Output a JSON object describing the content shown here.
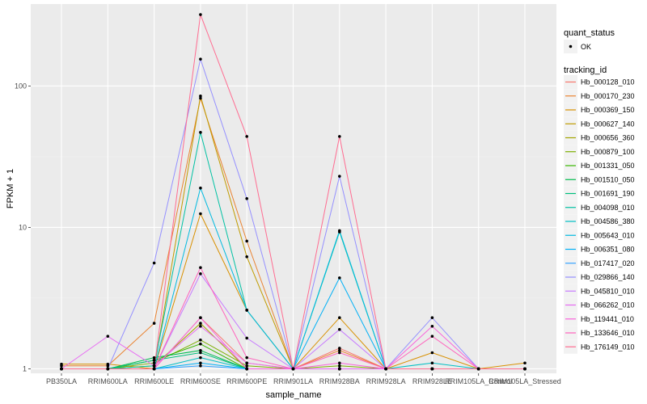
{
  "chart_data": {
    "type": "line",
    "title": "",
    "xlabel": "sample_name",
    "ylabel": "FPKM + 1",
    "y_scale": "log10",
    "ylim": [
      0.93,
      380
    ],
    "y_ticks": [
      1,
      10,
      100
    ],
    "y_tick_labels": [
      "1",
      "10",
      "100"
    ],
    "grid": true,
    "legend_position": "right",
    "categories": [
      "PB350LA",
      "RRIM600LA",
      "RRIM600LE",
      "RRIM600SE",
      "RRIM600PE",
      "RRIM901LA",
      "RRIM928BA",
      "RRIM928LA",
      "RRIM928LE",
      "RRIM105LA_Control",
      "RRIM105LA_Stressed"
    ],
    "quant_status_legend": {
      "title": "quant_status",
      "items": [
        "OK"
      ]
    },
    "tracking_legend_title": "tracking_id",
    "series": [
      {
        "name": "Hb_000128_010",
        "color": "#F8766D",
        "values": [
          1.0,
          1.0,
          1.0,
          2.3,
          1.1,
          1.0,
          1.4,
          1.0,
          1.0,
          1.0,
          1.0
        ]
      },
      {
        "name": "Hb_000170_230",
        "color": "#EA8331",
        "values": [
          1.05,
          1.05,
          2.1,
          82,
          8.0,
          1.0,
          1.35,
          1.0,
          1.0,
          1.0,
          1.0
        ]
      },
      {
        "name": "Hb_000369_150",
        "color": "#D89000",
        "values": [
          1.08,
          1.08,
          1.0,
          12.5,
          2.6,
          1.0,
          2.3,
          1.0,
          1.3,
          1.0,
          1.1
        ]
      },
      {
        "name": "Hb_000627_140",
        "color": "#C09B00",
        "values": [
          1.0,
          1.0,
          1.0,
          85,
          6.2,
          1.0,
          1.0,
          1.0,
          1.0,
          1.0,
          1.0
        ]
      },
      {
        "name": "Hb_000656_360",
        "color": "#A3A500",
        "values": [
          1.0,
          1.0,
          1.05,
          2.1,
          1.0,
          1.0,
          1.0,
          1.0,
          1.0,
          1.0,
          1.0
        ]
      },
      {
        "name": "Hb_000879_100",
        "color": "#7CAE00",
        "values": [
          1.0,
          1.0,
          1.1,
          1.6,
          1.05,
          1.0,
          1.05,
          1.0,
          1.0,
          1.0,
          1.0
        ]
      },
      {
        "name": "Hb_001331_050",
        "color": "#39B600",
        "values": [
          1.0,
          1.0,
          1.15,
          1.5,
          1.0,
          1.0,
          1.0,
          1.0,
          1.0,
          1.0,
          1.0
        ]
      },
      {
        "name": "Hb_001510_050",
        "color": "#00BB4E",
        "values": [
          1.0,
          1.0,
          1.2,
          1.35,
          1.0,
          1.0,
          1.0,
          1.0,
          1.0,
          1.0,
          1.0
        ]
      },
      {
        "name": "Hb_001691_190",
        "color": "#00BF7D",
        "values": [
          1.0,
          1.0,
          1.15,
          1.3,
          1.0,
          1.0,
          1.0,
          1.0,
          1.0,
          1.0,
          1.0
        ]
      },
      {
        "name": "Hb_004098_010",
        "color": "#00C1A3",
        "values": [
          1.0,
          1.0,
          1.05,
          47,
          2.6,
          1.0,
          9.3,
          1.0,
          1.0,
          1.0,
          1.0
        ]
      },
      {
        "name": "Hb_004586_380",
        "color": "#00BFC4",
        "values": [
          1.0,
          1.0,
          1.0,
          1.2,
          1.0,
          1.0,
          1.0,
          1.0,
          1.1,
          1.0,
          1.0
        ]
      },
      {
        "name": "Hb_005643_010",
        "color": "#00BAE0",
        "values": [
          1.0,
          1.0,
          1.0,
          19,
          2.6,
          1.0,
          9.5,
          1.0,
          1.0,
          1.0,
          1.0
        ]
      },
      {
        "name": "Hb_006351_080",
        "color": "#00B0F6",
        "values": [
          1.0,
          1.0,
          1.0,
          1.1,
          1.0,
          1.0,
          4.4,
          1.0,
          1.0,
          1.0,
          1.0
        ]
      },
      {
        "name": "Hb_017417_020",
        "color": "#35A2FF",
        "values": [
          1.0,
          1.0,
          1.0,
          1.05,
          1.0,
          1.0,
          1.0,
          1.0,
          1.0,
          1.0,
          1.0
        ]
      },
      {
        "name": "Hb_029866_140",
        "color": "#9590FF",
        "values": [
          1.0,
          1.0,
          5.6,
          155,
          16,
          1.0,
          23,
          1.0,
          2.3,
          1.0,
          1.0
        ]
      },
      {
        "name": "Hb_045810_010",
        "color": "#C77CFF",
        "values": [
          1.0,
          1.0,
          1.0,
          4.7,
          1.65,
          1.0,
          1.9,
          1.0,
          1.0,
          1.0,
          1.0
        ]
      },
      {
        "name": "Hb_066262_010",
        "color": "#E76BF3",
        "values": [
          1.0,
          1.7,
          1.05,
          2.0,
          1.1,
          1.0,
          1.0,
          1.0,
          1.0,
          1.0,
          1.0
        ]
      },
      {
        "name": "Hb_119441_010",
        "color": "#FA62DB",
        "values": [
          1.0,
          1.0,
          1.0,
          2.3,
          1.0,
          1.0,
          1.1,
          1.0,
          2.0,
          1.0,
          1.0
        ]
      },
      {
        "name": "Hb_133646_010",
        "color": "#FF62BC",
        "values": [
          1.0,
          1.0,
          1.0,
          5.2,
          1.2,
          1.0,
          1.3,
          1.0,
          1.7,
          1.0,
          1.0
        ]
      },
      {
        "name": "Hb_176149_010",
        "color": "#FF6C91",
        "values": [
          1.0,
          1.0,
          1.0,
          320,
          44,
          1.0,
          44,
          1.0,
          1.0,
          1.0,
          1.0
        ]
      }
    ]
  },
  "theme": {
    "panel_bg": "#EBEBEB",
    "grid_major": "#FFFFFF",
    "grid_minor": "#F2F2F2",
    "point_color": "#000000"
  }
}
